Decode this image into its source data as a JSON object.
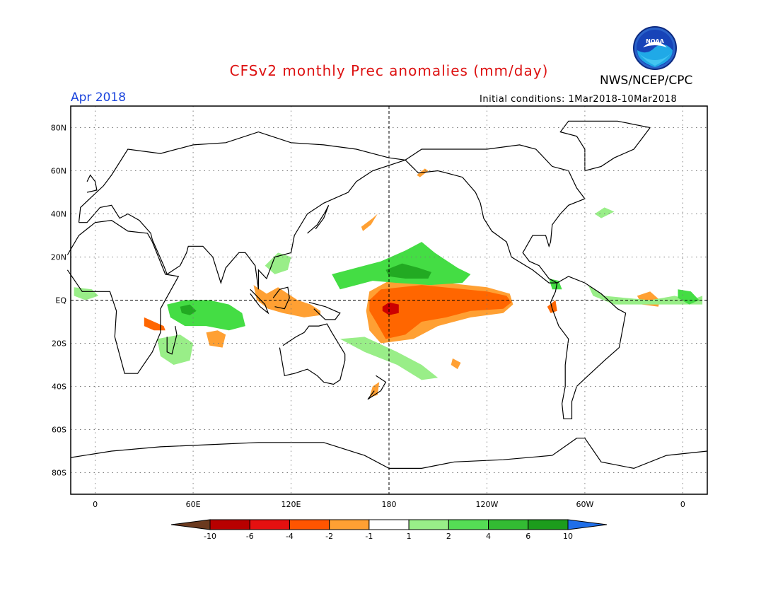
{
  "title": "CFSv2 monthly Prec anomalies (mm/day)",
  "month_label": "Apr 2018",
  "agency": "NWS/NCEP/CPC",
  "logo_text": "NOAA",
  "initial_conditions": "Initial conditions: 1Mar2018-10Mar2018",
  "colors": {
    "title": "#dd1111",
    "month": "#1a44dd",
    "logo_blue": "#1133aa",
    "logo_sky": "#22bbee",
    "frame": "#000000",
    "grid": "#777777",
    "land": "#000000"
  },
  "map": {
    "projection": "cylindrical equidistant, centered 180",
    "lon_range": [
      -15,
      375
    ],
    "lat_range": [
      -90,
      90
    ],
    "lat_ticks": [
      {
        "lat": 80,
        "label": "80N"
      },
      {
        "lat": 60,
        "label": "60N"
      },
      {
        "lat": 40,
        "label": "40N"
      },
      {
        "lat": 20,
        "label": "20N"
      },
      {
        "lat": 0,
        "label": "EQ"
      },
      {
        "lat": -20,
        "label": "20S"
      },
      {
        "lat": -40,
        "label": "40S"
      },
      {
        "lat": -60,
        "label": "60S"
      },
      {
        "lat": -80,
        "label": "80S"
      }
    ],
    "lon_ticks": [
      {
        "lon": 0,
        "label": "0"
      },
      {
        "lon": 60,
        "label": "60E"
      },
      {
        "lon": 120,
        "label": "120E"
      },
      {
        "lon": 180,
        "label": "180"
      },
      {
        "lon": 240,
        "label": "120W"
      },
      {
        "lon": 300,
        "label": "60W"
      },
      {
        "lon": 360,
        "label": "0"
      }
    ]
  },
  "anomaly_regions": [
    {
      "name": "central-pacific-dry",
      "class": "-4 to -2",
      "color": "#ff6600",
      "points": [
        [
          168,
          0
        ],
        [
          175,
          5
        ],
        [
          200,
          7
        ],
        [
          240,
          4
        ],
        [
          252,
          2
        ],
        [
          255,
          -1
        ],
        [
          250,
          -4
        ],
        [
          230,
          -5
        ],
        [
          215,
          -8
        ],
        [
          200,
          -10
        ],
        [
          190,
          -16
        ],
        [
          178,
          -18
        ],
        [
          172,
          -10
        ],
        [
          168,
          -5
        ]
      ]
    },
    {
      "name": "central-pacific-core",
      "class": "-6 to -4",
      "color": "#cc0000",
      "points": [
        [
          176,
          -3
        ],
        [
          180,
          -1
        ],
        [
          186,
          -2
        ],
        [
          186,
          -6
        ],
        [
          180,
          -7
        ],
        [
          176,
          -5
        ]
      ]
    },
    {
      "name": "pacific-dry-fringe",
      "class": "-2 to -1",
      "color": "#ffa033",
      "points": [
        [
          168,
          4
        ],
        [
          180,
          9
        ],
        [
          215,
          8
        ],
        [
          240,
          6
        ],
        [
          254,
          3
        ],
        [
          256,
          -2
        ],
        [
          250,
          -6
        ],
        [
          230,
          -8
        ],
        [
          210,
          -12
        ],
        [
          195,
          -18
        ],
        [
          175,
          -20
        ],
        [
          168,
          -14
        ],
        [
          166,
          -5
        ]
      ]
    },
    {
      "name": "ecuador-dry",
      "class": "-4 to -2",
      "color": "#ff6600",
      "points": [
        [
          277,
          -3
        ],
        [
          282,
          0
        ],
        [
          283,
          -5
        ],
        [
          279,
          -6
        ]
      ]
    },
    {
      "name": "maritime-continent-dry",
      "class": "-2 to -1",
      "color": "#ffa033",
      "points": [
        [
          97,
          7
        ],
        [
          105,
          3
        ],
        [
          112,
          6
        ],
        [
          124,
          0
        ],
        [
          132,
          -2
        ],
        [
          138,
          -5
        ],
        [
          138,
          -7
        ],
        [
          128,
          -8
        ],
        [
          115,
          -6
        ],
        [
          106,
          -4
        ],
        [
          99,
          0
        ]
      ]
    },
    {
      "name": "east-africa-dry",
      "class": "-4 to -2",
      "color": "#ff6600",
      "points": [
        [
          30,
          -8
        ],
        [
          36,
          -10
        ],
        [
          42,
          -12
        ],
        [
          43,
          -14
        ],
        [
          36,
          -14
        ],
        [
          30,
          -12
        ]
      ]
    },
    {
      "name": "north-pacific-dry",
      "class": "-2 to -1",
      "color": "#ffa033",
      "points": [
        [
          163,
          34
        ],
        [
          170,
          38
        ],
        [
          173,
          40
        ],
        [
          169,
          35
        ],
        [
          164,
          32
        ]
      ]
    },
    {
      "name": "bering-dry",
      "class": "-2 to -1",
      "color": "#ffa033",
      "points": [
        [
          197,
          58
        ],
        [
          202,
          61
        ],
        [
          204,
          60
        ],
        [
          199,
          57
        ]
      ]
    },
    {
      "name": "south-indian-dry",
      "class": "-2 to -1",
      "color": "#ffa033",
      "points": [
        [
          68,
          -15
        ],
        [
          75,
          -14
        ],
        [
          80,
          -16
        ],
        [
          78,
          -22
        ],
        [
          70,
          -21
        ]
      ]
    },
    {
      "name": "south-atlantic-dry",
      "class": "-2 to -1",
      "color": "#ffa033",
      "points": [
        [
          332,
          2
        ],
        [
          340,
          4
        ],
        [
          346,
          0
        ],
        [
          345,
          -3
        ],
        [
          335,
          -2
        ]
      ]
    },
    {
      "name": "nz-dry",
      "class": "-2 to -1",
      "color": "#ffa033",
      "points": [
        [
          170,
          -40
        ],
        [
          174,
          -38
        ],
        [
          173,
          -44
        ],
        [
          168,
          -45
        ]
      ]
    },
    {
      "name": "south-pacific-dry",
      "class": "-2 to -1",
      "color": "#ffa033",
      "points": [
        [
          219,
          -27
        ],
        [
          224,
          -29
        ],
        [
          222,
          -32
        ],
        [
          218,
          -30
        ]
      ]
    },
    {
      "name": "north-pacific-wet",
      "class": "2 to 4",
      "color": "#44dd44",
      "points": [
        [
          145,
          12
        ],
        [
          160,
          15
        ],
        [
          175,
          18
        ],
        [
          190,
          23
        ],
        [
          200,
          27
        ],
        [
          208,
          22
        ],
        [
          222,
          15
        ],
        [
          230,
          12
        ],
        [
          225,
          8
        ],
        [
          205,
          7
        ],
        [
          185,
          8
        ],
        [
          170,
          9
        ],
        [
          150,
          5
        ]
      ]
    },
    {
      "name": "north-pacific-wet-core",
      "class": "4 to 6",
      "color": "#22aa22",
      "points": [
        [
          178,
          14
        ],
        [
          188,
          17
        ],
        [
          198,
          15
        ],
        [
          206,
          13
        ],
        [
          204,
          10
        ],
        [
          190,
          10
        ],
        [
          180,
          11
        ]
      ]
    },
    {
      "name": "indian-ocean-wet",
      "class": "2 to 4",
      "color": "#44dd44",
      "points": [
        [
          44,
          -2
        ],
        [
          55,
          0
        ],
        [
          70,
          0
        ],
        [
          82,
          -2
        ],
        [
          90,
          -6
        ],
        [
          92,
          -12
        ],
        [
          82,
          -14
        ],
        [
          68,
          -12
        ],
        [
          55,
          -12
        ],
        [
          46,
          -8
        ]
      ]
    },
    {
      "name": "indian-ocean-wet-core",
      "class": "4 to 6",
      "color": "#22aa22",
      "points": [
        [
          52,
          -3
        ],
        [
          58,
          -2
        ],
        [
          62,
          -5
        ],
        [
          58,
          -7
        ],
        [
          53,
          -6
        ]
      ]
    },
    {
      "name": "southwest-indian-wet",
      "class": "1 to 2",
      "color": "#99ee88",
      "points": [
        [
          38,
          -18
        ],
        [
          52,
          -16
        ],
        [
          60,
          -20
        ],
        [
          58,
          -28
        ],
        [
          48,
          -30
        ],
        [
          40,
          -26
        ]
      ]
    },
    {
      "name": "spcz-wet",
      "class": "1 to 2",
      "color": "#99ee88",
      "points": [
        [
          150,
          -18
        ],
        [
          165,
          -24
        ],
        [
          185,
          -30
        ],
        [
          200,
          -37
        ],
        [
          210,
          -36
        ],
        [
          200,
          -30
        ],
        [
          185,
          -24
        ],
        [
          165,
          -17
        ]
      ]
    },
    {
      "name": "atlantic-itcz-wet",
      "class": "1 to 2",
      "color": "#99ee88",
      "points": [
        [
          302,
          7
        ],
        [
          312,
          2
        ],
        [
          325,
          1
        ],
        [
          340,
          0
        ],
        [
          355,
          2
        ],
        [
          365,
          0
        ],
        [
          372,
          2
        ],
        [
          372,
          -2
        ],
        [
          355,
          -2
        ],
        [
          335,
          -2
        ],
        [
          318,
          -2
        ],
        [
          305,
          2
        ]
      ]
    },
    {
      "name": "gulf-of-guinea-wet",
      "class": "2 to 4",
      "color": "#44dd44",
      "points": [
        [
          357,
          5
        ],
        [
          365,
          4
        ],
        [
          370,
          0
        ],
        [
          364,
          -2
        ],
        [
          357,
          1
        ]
      ]
    },
    {
      "name": "west-africa-wet",
      "class": "1 to 2",
      "color": "#99ee88",
      "points": [
        [
          -13,
          6
        ],
        [
          -2,
          5
        ],
        [
          2,
          2
        ],
        [
          -6,
          0
        ],
        [
          -13,
          2
        ]
      ]
    },
    {
      "name": "north-atlantic-wet",
      "class": "1 to 2",
      "color": "#99ee88",
      "points": [
        [
          306,
          40
        ],
        [
          312,
          43
        ],
        [
          318,
          41
        ],
        [
          310,
          38
        ]
      ]
    },
    {
      "name": "panama-wet",
      "class": "2 to 4",
      "color": "#44dd44",
      "points": [
        [
          278,
          10
        ],
        [
          284,
          9
        ],
        [
          286,
          5
        ],
        [
          280,
          5
        ]
      ]
    },
    {
      "name": "south-china-sea-wet",
      "class": "1 to 2",
      "color": "#99ee88",
      "points": [
        [
          104,
          16
        ],
        [
          112,
          22
        ],
        [
          120,
          20
        ],
        [
          118,
          14
        ],
        [
          110,
          12
        ]
      ]
    }
  ],
  "colorbar": {
    "labels": [
      "-10",
      "-6",
      "-4",
      "-2",
      "-1",
      "1",
      "2",
      "4",
      "6",
      "10"
    ],
    "colors": [
      "#6b3a1f",
      "#b80000",
      "#e51010",
      "#ff5500",
      "#ffa033",
      "#ffffff",
      "#99ee88",
      "#55dd55",
      "#33bb33",
      "#1c9c1c",
      "#1f6ee8"
    ]
  }
}
